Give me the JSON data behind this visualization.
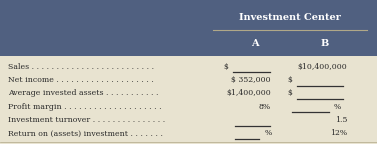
{
  "title": "Investment Center",
  "col_a": "A",
  "col_b": "B",
  "rows": [
    {
      "label": "Sales . . . . . . . . . . . . . . . . . . . . . . . . .",
      "a_prefix": "$",
      "a_val": "",
      "a_blank": true,
      "b_val": "$10,400,000",
      "b_blank": false,
      "b_prefix": ""
    },
    {
      "label": "Net income . . . . . . . . . . . . . . . . . . . .",
      "a_prefix": "$",
      "a_val": " 352,000",
      "a_blank": false,
      "b_val": "",
      "b_blank": true,
      "b_prefix": "$"
    },
    {
      "label": "Average invested assets . . . . . . . . . . .",
      "a_prefix": "$",
      "a_val": "1,400,000",
      "a_blank": false,
      "b_val": "",
      "b_blank": true,
      "b_prefix": "$"
    },
    {
      "label": "Profit margin . . . . . . . . . . . . . . . . . . . .",
      "a_prefix": "",
      "a_val": "8%",
      "a_blank": false,
      "b_val": "%",
      "b_blank": true,
      "b_prefix": ""
    },
    {
      "label": "Investment turnover . . . . . . . . . . . . . . .",
      "a_prefix": "",
      "a_val": "",
      "a_blank": true,
      "b_val": "1.5",
      "b_blank": false,
      "b_prefix": ""
    },
    {
      "label": "Return on (assets) investment . . . . . . .",
      "a_prefix": "",
      "a_val": "%",
      "a_blank": true,
      "b_val": "12%",
      "b_blank": false,
      "b_prefix": ""
    }
  ],
  "header_bg": "#506080",
  "header_text": "#ffffff",
  "body_bg": "#e8e3d0",
  "body_text": "#2a2a2a",
  "line_color": "#b0a888",
  "blank_color": "#333333"
}
